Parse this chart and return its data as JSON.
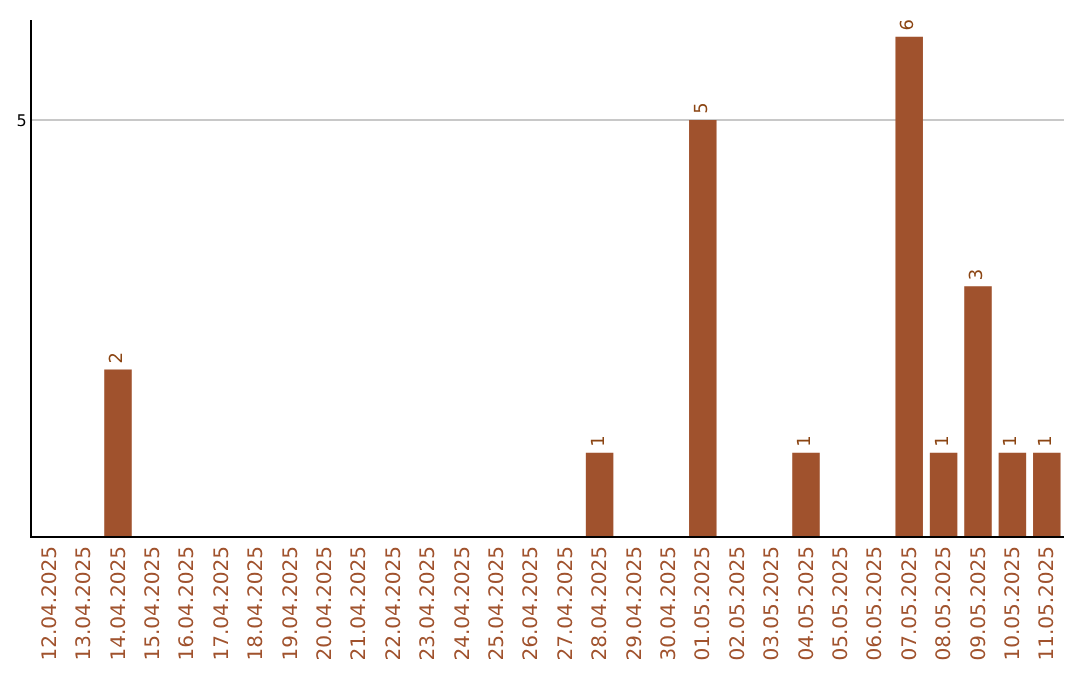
{
  "chart_data": {
    "type": "bar",
    "categories": [
      "12.04.2025",
      "13.04.2025",
      "14.04.2025",
      "15.04.2025",
      "16.04.2025",
      "17.04.2025",
      "18.04.2025",
      "19.04.2025",
      "20.04.2025",
      "21.04.2025",
      "22.04.2025",
      "23.04.2025",
      "24.04.2025",
      "25.04.2025",
      "26.04.2025",
      "27.04.2025",
      "28.04.2025",
      "29.04.2025",
      "30.04.2025",
      "01.05.2025",
      "02.05.2025",
      "03.05.2025",
      "04.05.2025",
      "05.05.2025",
      "06.05.2025",
      "07.05.2025",
      "08.05.2025",
      "09.05.2025",
      "10.05.2025",
      "11.05.2025"
    ],
    "values": [
      0,
      0,
      2,
      0,
      0,
      0,
      0,
      0,
      0,
      0,
      0,
      0,
      0,
      0,
      0,
      0,
      1,
      0,
      0,
      5,
      0,
      0,
      1,
      0,
      0,
      6,
      1,
      3,
      1,
      1
    ],
    "value_labels": [
      null,
      null,
      "2",
      null,
      null,
      null,
      null,
      null,
      null,
      null,
      null,
      null,
      null,
      null,
      null,
      null,
      "1",
      null,
      null,
      "5",
      null,
      null,
      "1",
      null,
      null,
      "6",
      "1",
      "3",
      "1",
      "1"
    ],
    "color": "#a0522d",
    "ylim": [
      0,
      6.2
    ],
    "yticks": [
      5
    ],
    "grid": "y"
  }
}
